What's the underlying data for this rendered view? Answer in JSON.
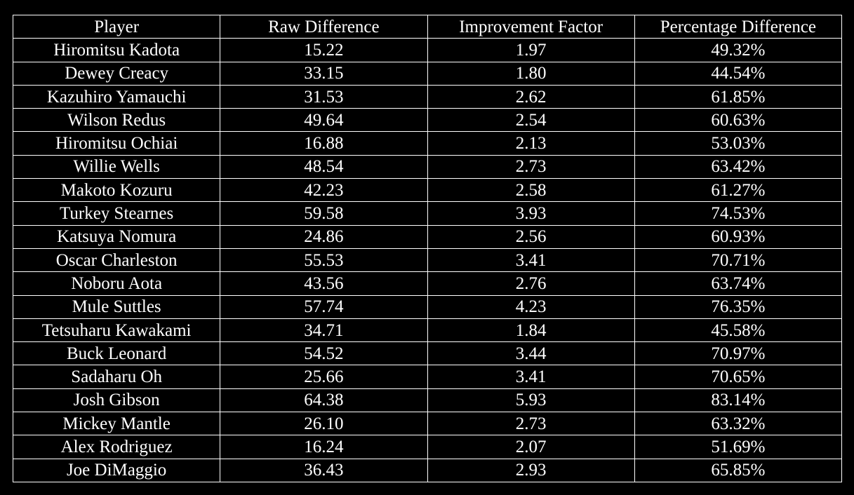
{
  "table": {
    "headers": [
      "Player",
      "Raw Difference",
      "Improvement Factor",
      "Percentage Difference"
    ],
    "rows": [
      [
        "Hiromitsu Kadota",
        "15.22",
        "1.97",
        "49.32%"
      ],
      [
        "Dewey Creacy",
        "33.15",
        "1.80",
        "44.54%"
      ],
      [
        "Kazuhiro Yamauchi",
        "31.53",
        "2.62",
        "61.85%"
      ],
      [
        "Wilson Redus",
        "49.64",
        "2.54",
        "60.63%"
      ],
      [
        "Hiromitsu Ochiai",
        "16.88",
        "2.13",
        "53.03%"
      ],
      [
        "Willie Wells",
        "48.54",
        "2.73",
        "63.42%"
      ],
      [
        "Makoto Kozuru",
        "42.23",
        "2.58",
        "61.27%"
      ],
      [
        "Turkey Stearnes",
        "59.58",
        "3.93",
        "74.53%"
      ],
      [
        "Katsuya Nomura",
        "24.86",
        "2.56",
        "60.93%"
      ],
      [
        "Oscar Charleston",
        "55.53",
        "3.41",
        "70.71%"
      ],
      [
        "Noboru Aota",
        "43.56",
        "2.76",
        "63.74%"
      ],
      [
        "Mule Suttles",
        "57.74",
        "4.23",
        "76.35%"
      ],
      [
        "Tetsuharu Kawakami",
        "34.71",
        "1.84",
        "45.58%"
      ],
      [
        "Buck Leonard",
        "54.52",
        "3.44",
        "70.97%"
      ],
      [
        "Sadaharu Oh",
        "25.66",
        "3.41",
        "70.65%"
      ],
      [
        "Josh Gibson",
        "64.38",
        "5.93",
        "83.14%"
      ],
      [
        "Mickey Mantle",
        "26.10",
        "2.73",
        "63.32%"
      ],
      [
        "Alex Rodriguez",
        "16.24",
        "2.07",
        "51.69%"
      ],
      [
        "Joe DiMaggio",
        "36.43",
        "2.93",
        "65.85%"
      ]
    ]
  },
  "colors": {
    "background": "#000000",
    "text": "#ffffff",
    "border": "#ffffff"
  }
}
